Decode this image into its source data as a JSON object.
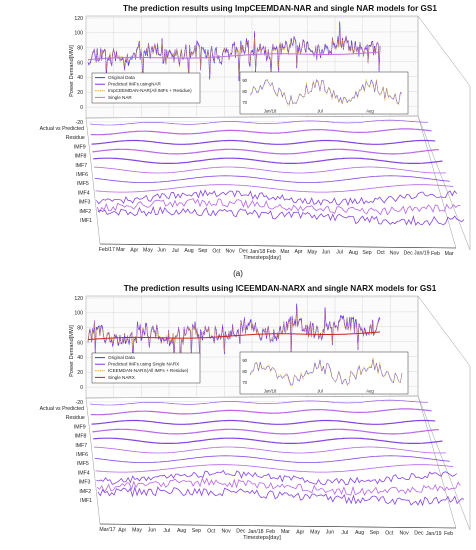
{
  "panels": [
    {
      "id": "a",
      "caption": "(a)",
      "chart_data": {
        "type": "line",
        "title": "The prediction results using ImpCEEMDAN-NAR and single NAR models for GS1",
        "ylabel": "Power Demand[MW]",
        "xlabel": "Timesteps[day]",
        "yticks": [
          "120",
          "100",
          "80",
          "60",
          "40",
          "20",
          "0",
          "-20"
        ],
        "xticks": [
          "Feb/17",
          "Mar",
          "Apr",
          "May",
          "Jun",
          "Jul",
          "Aug",
          "Sep",
          "Oct",
          "Nov",
          "Dec",
          "Jan/18",
          "Feb",
          "Mar",
          "Apr",
          "May",
          "Jun",
          "Jul",
          "Aug",
          "Sep",
          "Oct",
          "Nov",
          "Dec",
          "Jan/19",
          "Feb",
          "Mar"
        ],
        "depth_labels": [
          "Actual vs Predicted",
          "Residue",
          "IMF9",
          "IMF8",
          "IMF7",
          "IMF6",
          "IMF5",
          "IMF4",
          "IMF3",
          "IMF2",
          "IMF1"
        ],
        "legend": [
          "Original Data",
          "Predicted IMFs usingNAR",
          "ImpCEEMDAN-NAR(All IMFs + Residue)",
          "Single NAR"
        ],
        "inset": {
          "xticks": [
            "Jun/18",
            "Jul",
            "Aug"
          ],
          "yticks": [
            "90",
            "80",
            "70"
          ]
        },
        "ylim": [
          -20,
          120
        ],
        "series": [
          {
            "name": "Original Data",
            "color": "#3a3af0"
          },
          {
            "name": "Predicted IMFs usingNAR",
            "color": "#8a2be2"
          },
          {
            "name": "ImpCEEMDAN-NAR(All IMFs + Residue)",
            "color": "#f0a020"
          },
          {
            "name": "Single NAR",
            "color": "#c070e0"
          }
        ]
      }
    },
    {
      "id": "b",
      "caption": "(b)",
      "chart_data": {
        "type": "line",
        "title": "The prediction results using ICEEMDAN-NARX and single NARX models for GS1",
        "ylabel": "Power Demand[MW]",
        "xlabel": "Timesteps[day]",
        "yticks": [
          "120",
          "100",
          "80",
          "60",
          "40",
          "20",
          "0",
          "-20"
        ],
        "xticks": [
          "Mar/17",
          "Apr",
          "May",
          "Jun",
          "Jul",
          "Aug",
          "Sep",
          "Oct",
          "Nov",
          "Dec",
          "Jan/18",
          "Feb",
          "Mar",
          "Apr",
          "May",
          "Jun",
          "Jul",
          "Aug",
          "Sep",
          "Oct",
          "Nov",
          "Dec",
          "Jan/19",
          "Feb"
        ],
        "depth_labels": [
          "Actual vs Predicted",
          "Residue",
          "IMF9",
          "IMF8",
          "IMF7",
          "IMF6",
          "IMF5",
          "IMF4",
          "IMF3",
          "IMF2",
          "IMF1"
        ],
        "legend": [
          "Original Data",
          "Predicted IMFs using Single NARX",
          "ICEEMDAN-NARX(All IMFs + Residue)",
          "Single NARX"
        ],
        "inset": {
          "xticks": [
            "Jun/18",
            "Jul",
            "Aug"
          ],
          "yticks": [
            "90",
            "80",
            "70"
          ]
        },
        "ylim": [
          -20,
          120
        ],
        "series": [
          {
            "name": "Original Data",
            "color": "#3a3af0"
          },
          {
            "name": "Predicted IMFs using Single NARX",
            "color": "#8a2be2"
          },
          {
            "name": "ICEEMDAN-NARX(All IMFs + Residue)",
            "color": "#f0a020"
          },
          {
            "name": "Single NARX",
            "color": "#d02020"
          }
        ]
      }
    }
  ]
}
